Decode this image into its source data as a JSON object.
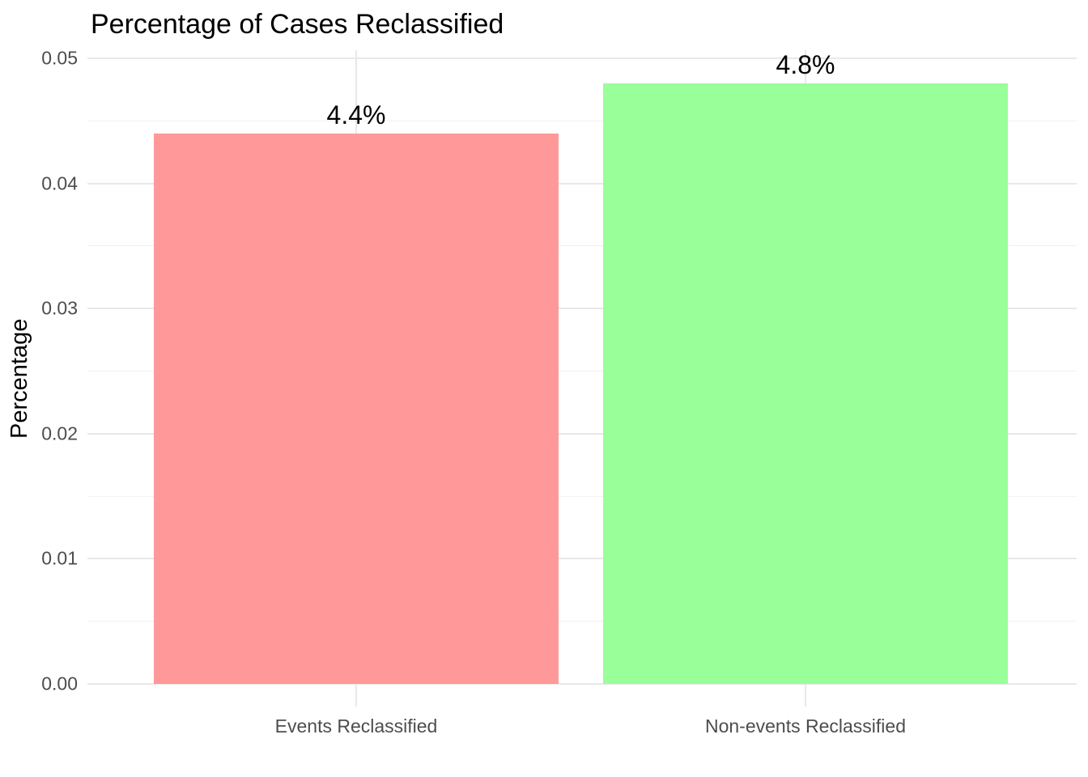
{
  "chart": {
    "title": "Percentage of Cases Reclassified",
    "ylabel": "Percentage"
  },
  "chart_data": {
    "type": "bar",
    "title": "Percentage of Cases Reclassified",
    "xlabel": "",
    "ylabel": "Percentage",
    "categories": [
      "Events Reclassified",
      "Non-events Reclassified"
    ],
    "values": [
      0.044,
      0.048
    ],
    "bar_labels": [
      "4.4%",
      "4.8%"
    ],
    "bar_colors": [
      "#FF9999",
      "#99FF99"
    ],
    "ylim": [
      0,
      0.05
    ],
    "yticks": [
      0,
      0.01,
      0.02,
      0.03,
      0.04,
      0.05
    ],
    "ytick_labels": [
      "0.00",
      "0.01",
      "0.02",
      "0.03",
      "0.04",
      "0.05"
    ],
    "minor_yticks": [
      0.005,
      0.015,
      0.025,
      0.035,
      0.045
    ],
    "grid": "on",
    "legend": "none",
    "colors": {
      "background": "#FFFFFF",
      "grid_major": "#E8E8E8",
      "grid_minor": "#F1F1F1",
      "tick_label": "#4D4D4D",
      "title_text": "#000000",
      "axis_title_text": "#000000",
      "bar_label_text": "#000000"
    }
  }
}
